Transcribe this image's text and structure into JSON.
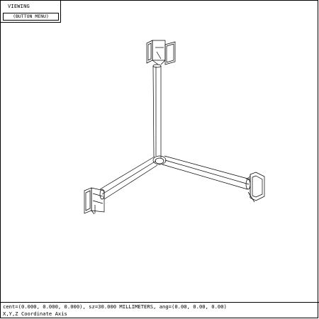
{
  "menu": {
    "title": "VIEWING",
    "button_label": "(BUTTON MENU)"
  },
  "viewport": {
    "model_name": "X,Y,Z Coordinate Axis"
  },
  "status": {
    "view_params": "cent=(0.000, 0.000, 0.000), sz=30.000 MILLIMETERS, ang=(0.00, 0.00, 0.00)",
    "model_name": "X,Y,Z Coordinate Axis"
  },
  "colors": {
    "background": "#ffffff",
    "line": "#000000"
  }
}
